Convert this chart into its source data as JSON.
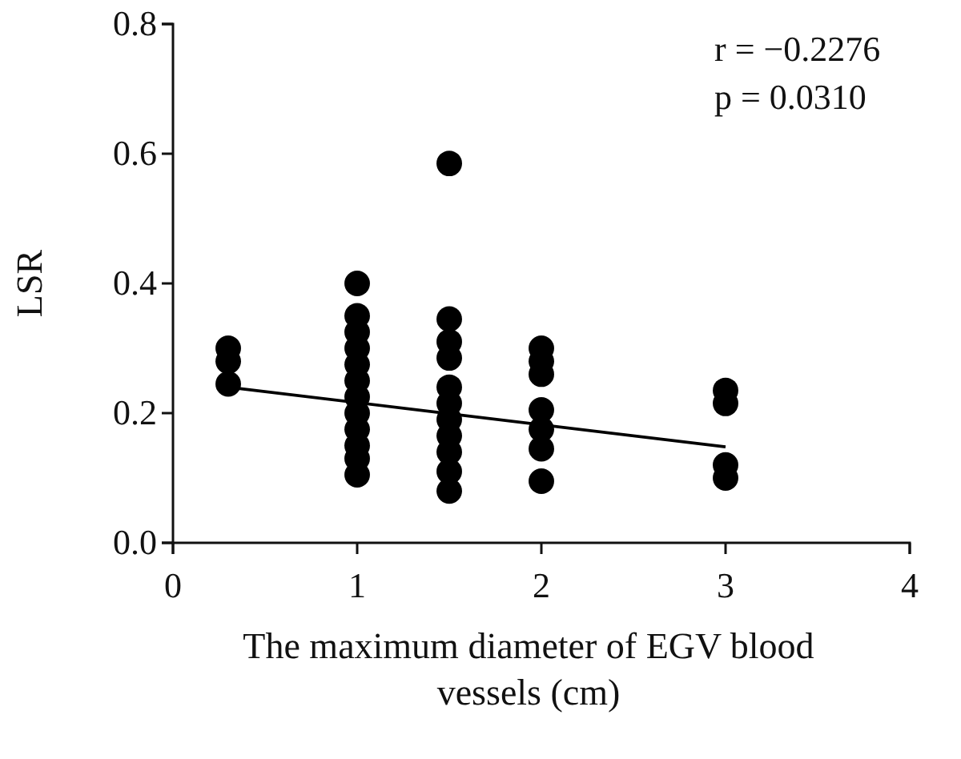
{
  "chart_data": {
    "type": "scatter",
    "xlabel": "The maximum diameter of EGV blood vessels (cm)",
    "ylabel": "LSR",
    "xlim": [
      0,
      4
    ],
    "xticks": [
      0,
      1,
      2,
      3,
      4
    ],
    "ylim": [
      0,
      0.8
    ],
    "yticks": [
      {
        "value": 0,
        "label": "0.0"
      },
      0.2,
      0.4,
      0.6,
      0.8
    ],
    "grid": false,
    "marker": "circle",
    "annotations": [
      "r = −0.2276",
      "p = 0.0310"
    ],
    "series": [
      {
        "color": "#000000",
        "x": [
          0.3,
          0.3,
          0.3,
          1,
          1,
          1,
          1,
          1,
          1,
          1,
          1,
          1,
          1,
          1,
          1,
          1.5,
          1.5,
          1.5,
          1.5,
          1.5,
          1.5,
          1.5,
          1.5,
          1.5,
          1.5,
          1.5,
          2,
          2,
          2,
          2,
          2,
          2,
          2,
          3,
          3,
          3,
          3
        ],
        "values": [
          0.3,
          0.28,
          0.245,
          0.4,
          0.35,
          0.325,
          0.3,
          0.275,
          0.25,
          0.225,
          0.2,
          0.175,
          0.15,
          0.13,
          0.105,
          0.585,
          0.345,
          0.31,
          0.285,
          0.24,
          0.215,
          0.19,
          0.165,
          0.14,
          0.11,
          0.08,
          0.3,
          0.28,
          0.26,
          0.205,
          0.175,
          0.145,
          0.095,
          0.235,
          0.215,
          0.12,
          0.1
        ]
      },
      {
        "type": "line",
        "color": "#000000",
        "x": [
          0.3,
          3
        ],
        "values": [
          0.24,
          0.148
        ],
        "marker": "none"
      }
    ]
  }
}
